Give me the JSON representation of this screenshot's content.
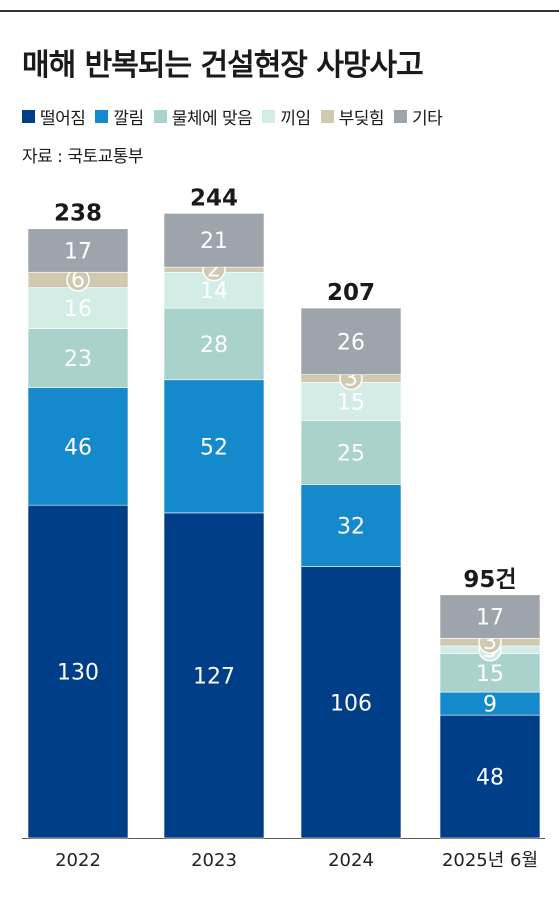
{
  "title": "매해 반복되는 건설현장 사망사고",
  "source": "자료 : 국토교통부",
  "legend": [
    {
      "label": "떨어짐",
      "color": "#003e87"
    },
    {
      "label": "깔림",
      "color": "#1489cc"
    },
    {
      "label": "물체에 맞음",
      "color": "#a9d2cd"
    },
    {
      "label": "끼임",
      "color": "#d3ede6"
    },
    {
      "label": "부딪힘",
      "color": "#cfc9b0"
    },
    {
      "label": "기타",
      "color": "#9ea4ab"
    }
  ],
  "chart_data": {
    "type": "bar",
    "stacked": true,
    "categories": [
      "2022",
      "2023",
      "2024",
      "2025년 6월"
    ],
    "totals": [
      "238",
      "244",
      "207",
      "95건"
    ],
    "series": [
      {
        "name": "떨어짐",
        "values": [
          130,
          127,
          106,
          48
        ]
      },
      {
        "name": "깔림",
        "values": [
          46,
          52,
          32,
          9
        ]
      },
      {
        "name": "물체에 맞음",
        "values": [
          23,
          28,
          25,
          15
        ]
      },
      {
        "name": "끼임",
        "values": [
          16,
          14,
          15,
          3
        ]
      },
      {
        "name": "부딪힘",
        "values": [
          6,
          2,
          3,
          3
        ]
      },
      {
        "name": "기타",
        "values": [
          17,
          21,
          26,
          17
        ]
      }
    ],
    "ylim": [
      0,
      244
    ]
  }
}
